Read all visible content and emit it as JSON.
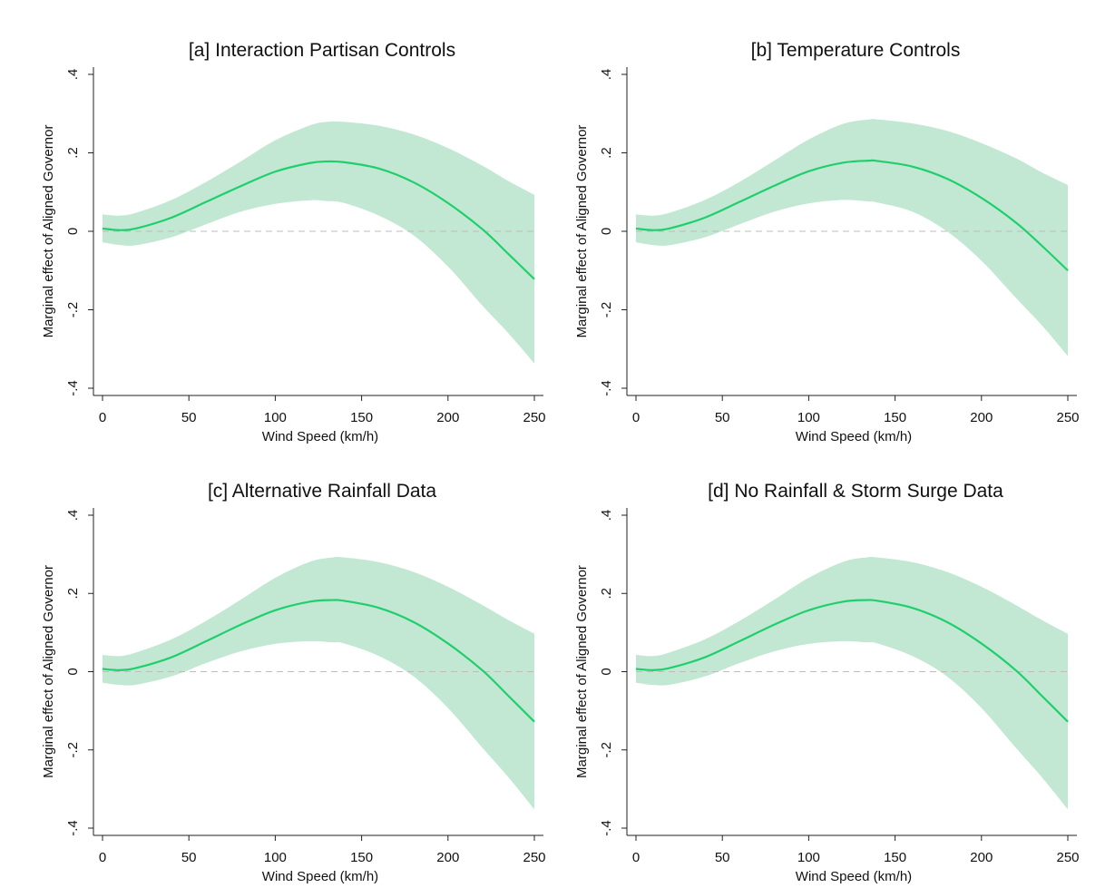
{
  "style": {
    "band_color": "#c2e8d4",
    "line_color": "#1fcf6b"
  },
  "chart_data": [
    {
      "type": "line",
      "title": "[a] Interaction Partisan Controls",
      "xlabel": "Wind Speed (km/h)",
      "ylabel": "Marginal effect of Aligned Governor",
      "xlim": [
        0,
        250
      ],
      "ylim": [
        -0.4,
        0.4
      ],
      "xticks": [
        0,
        50,
        100,
        150,
        200,
        250
      ],
      "xtick_labels": [
        "0",
        "50",
        "100",
        "150",
        "200",
        "250"
      ],
      "yticks": [
        -0.4,
        -0.2,
        0,
        0.2,
        0.4
      ],
      "ytick_labels": [
        "-.4",
        "-.2",
        "0",
        ".2",
        ".4"
      ],
      "grid": false,
      "reference_line": 0,
      "x": [
        0,
        10,
        20,
        40,
        60,
        80,
        100,
        120,
        130,
        140,
        160,
        180,
        200,
        220,
        235,
        250
      ],
      "estimate": [
        0.007,
        0.003,
        0.008,
        0.035,
        0.075,
        0.115,
        0.152,
        0.174,
        0.178,
        0.176,
        0.16,
        0.125,
        0.072,
        0.005,
        -0.058,
        -0.122
      ],
      "ci_upper": [
        0.043,
        0.04,
        0.048,
        0.08,
        0.126,
        0.178,
        0.232,
        0.27,
        0.279,
        0.279,
        0.269,
        0.247,
        0.212,
        0.167,
        0.128,
        0.093
      ],
      "ci_lower": [
        -0.028,
        -0.035,
        -0.035,
        -0.015,
        0.018,
        0.05,
        0.07,
        0.079,
        0.077,
        0.072,
        0.04,
        -0.01,
        -0.09,
        -0.19,
        -0.26,
        -0.337
      ]
    },
    {
      "type": "line",
      "title": "[b] Temperature Controls",
      "xlabel": "Wind Speed (km/h)",
      "ylabel": "Marginal effect of Aligned Governor",
      "xlim": [
        0,
        250
      ],
      "ylim": [
        -0.4,
        0.4
      ],
      "xticks": [
        0,
        50,
        100,
        150,
        200,
        250
      ],
      "xtick_labels": [
        "0",
        "50",
        "100",
        "150",
        "200",
        "250"
      ],
      "yticks": [
        -0.4,
        -0.2,
        0,
        0.2,
        0.4
      ],
      "ytick_labels": [
        "-.4",
        "-.2",
        "0",
        ".2",
        ".4"
      ],
      "grid": false,
      "reference_line": 0,
      "x": [
        0,
        10,
        20,
        40,
        60,
        80,
        100,
        120,
        135,
        140,
        160,
        180,
        200,
        220,
        235,
        250
      ],
      "estimate": [
        0.007,
        0.003,
        0.008,
        0.035,
        0.075,
        0.116,
        0.153,
        0.175,
        0.18,
        0.179,
        0.165,
        0.134,
        0.085,
        0.022,
        -0.037,
        -0.1
      ],
      "ci_upper": [
        0.043,
        0.04,
        0.048,
        0.08,
        0.126,
        0.18,
        0.234,
        0.274,
        0.285,
        0.285,
        0.275,
        0.256,
        0.225,
        0.186,
        0.15,
        0.118
      ],
      "ci_lower": [
        -0.028,
        -0.035,
        -0.035,
        -0.015,
        0.018,
        0.05,
        0.071,
        0.08,
        0.076,
        0.073,
        0.05,
        0.0,
        -0.075,
        -0.17,
        -0.24,
        -0.318
      ]
    },
    {
      "type": "line",
      "title": "[c] Alternative Rainfall Data",
      "xlabel": "Wind Speed (km/h)",
      "ylabel": "Marginal effect of Aligned Governor",
      "xlim": [
        0,
        250
      ],
      "ylim": [
        -0.4,
        0.4
      ],
      "xticks": [
        0,
        50,
        100,
        150,
        200,
        250
      ],
      "xtick_labels": [
        "0",
        "50",
        "100",
        "150",
        "200",
        "250"
      ],
      "yticks": [
        -0.4,
        -0.2,
        0,
        0.2,
        0.4
      ],
      "ytick_labels": [
        "-.4",
        "-.2",
        "0",
        ".2",
        ".4"
      ],
      "grid": false,
      "reference_line": 0,
      "x": [
        0,
        10,
        20,
        40,
        60,
        80,
        100,
        120,
        133,
        140,
        160,
        180,
        200,
        220,
        235,
        250
      ],
      "estimate": [
        0.007,
        0.004,
        0.01,
        0.037,
        0.078,
        0.12,
        0.157,
        0.179,
        0.183,
        0.181,
        0.163,
        0.127,
        0.072,
        0.003,
        -0.062,
        -0.128
      ],
      "ci_upper": [
        0.043,
        0.04,
        0.05,
        0.083,
        0.13,
        0.184,
        0.24,
        0.281,
        0.292,
        0.292,
        0.28,
        0.255,
        0.217,
        0.17,
        0.132,
        0.097
      ],
      "ci_lower": [
        -0.028,
        -0.034,
        -0.033,
        -0.012,
        0.022,
        0.052,
        0.071,
        0.078,
        0.075,
        0.072,
        0.04,
        -0.012,
        -0.093,
        -0.195,
        -0.27,
        -0.352
      ]
    },
    {
      "type": "line",
      "title": "[d] No Rainfall & Storm Surge Data",
      "xlabel": "Wind Speed (km/h)",
      "ylabel": "Marginal effect of Aligned Governor",
      "xlim": [
        0,
        250
      ],
      "ylim": [
        -0.4,
        0.4
      ],
      "xticks": [
        0,
        50,
        100,
        150,
        200,
        250
      ],
      "xtick_labels": [
        "0",
        "50",
        "100",
        "150",
        "200",
        "250"
      ],
      "yticks": [
        -0.4,
        -0.2,
        0,
        0.2,
        0.4
      ],
      "ytick_labels": [
        "-.4",
        "-.2",
        "0",
        ".2",
        ".4"
      ],
      "grid": false,
      "reference_line": 0,
      "x": [
        0,
        10,
        20,
        40,
        60,
        80,
        100,
        120,
        133,
        140,
        160,
        180,
        200,
        220,
        235,
        250
      ],
      "estimate": [
        0.007,
        0.004,
        0.01,
        0.037,
        0.078,
        0.12,
        0.157,
        0.179,
        0.183,
        0.181,
        0.163,
        0.127,
        0.072,
        0.003,
        -0.062,
        -0.128
      ],
      "ci_upper": [
        0.043,
        0.04,
        0.05,
        0.083,
        0.13,
        0.184,
        0.24,
        0.281,
        0.292,
        0.292,
        0.28,
        0.255,
        0.217,
        0.17,
        0.132,
        0.097
      ],
      "ci_lower": [
        -0.028,
        -0.034,
        -0.033,
        -0.012,
        0.022,
        0.052,
        0.071,
        0.078,
        0.075,
        0.072,
        0.04,
        -0.012,
        -0.093,
        -0.195,
        -0.27,
        -0.352
      ]
    }
  ]
}
